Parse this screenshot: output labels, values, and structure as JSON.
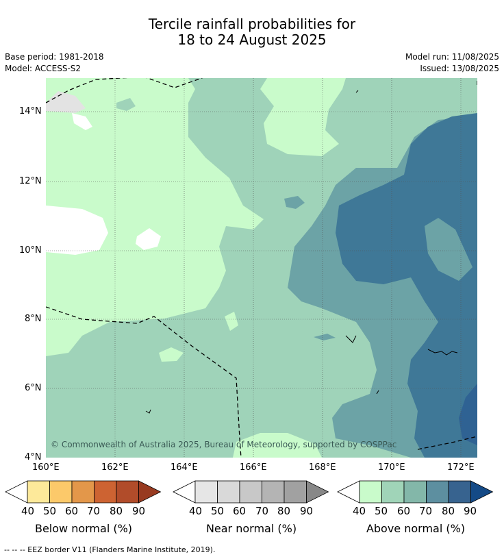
{
  "title_line1": "Tercile rainfall probabilities for",
  "title_line2": "18 to 24 August 2025",
  "base_period": "Base period: 1981-2018",
  "model": "Model: ACCESS-S2",
  "model_run": "Model run: 11/08/2025",
  "issued": "Issued: 13/08/2025",
  "copyright": "© Commonwealth of Australia 2025, Bureau of Meteorology, supported by COSPPac",
  "lat_labels": [
    "14°N",
    "12°N",
    "10°N",
    "8°N",
    "6°N",
    "4°N"
  ],
  "lon_labels": [
    "160°E",
    "162°E",
    "164°E",
    "166°E",
    "168°E",
    "170°E",
    "172°E"
  ],
  "colorbars": [
    {
      "title": "Below normal (%)",
      "ticks": [
        "40",
        "50",
        "60",
        "70",
        "80",
        "90"
      ],
      "colors": [
        "#ffffff",
        "#fde99a",
        "#fcc96a",
        "#e3974a",
        "#cd6332",
        "#b14c2a",
        "#983a20"
      ]
    },
    {
      "title": "Near normal (%)",
      "ticks": [
        "40",
        "50",
        "60",
        "70",
        "80",
        "90"
      ],
      "colors": [
        "#ffffff",
        "#e6e6e6",
        "#d9d9d9",
        "#c8c8c8",
        "#b4b4b4",
        "#a1a1a1",
        "#888888"
      ]
    },
    {
      "title": "Above normal (%)",
      "ticks": [
        "40",
        "50",
        "60",
        "70",
        "80",
        "90"
      ],
      "colors": [
        "#ffffff",
        "#c9fbcb",
        "#a0d4b8",
        "#83b7a9",
        "#5d8fa0",
        "#37638f",
        "#144a86"
      ]
    }
  ],
  "footnote": "--  --  -- EEZ border V11 (Flanders Marine Institute, 2019).",
  "colors": {
    "above_40_50": "#c9fbcb",
    "above_50_60": "#9fd3b9",
    "above_60_70": "#6ca3a6",
    "above_70_80": "#3f7897",
    "above_80_90": "#2f6293",
    "near_40_50": "#e3e3e3"
  }
}
